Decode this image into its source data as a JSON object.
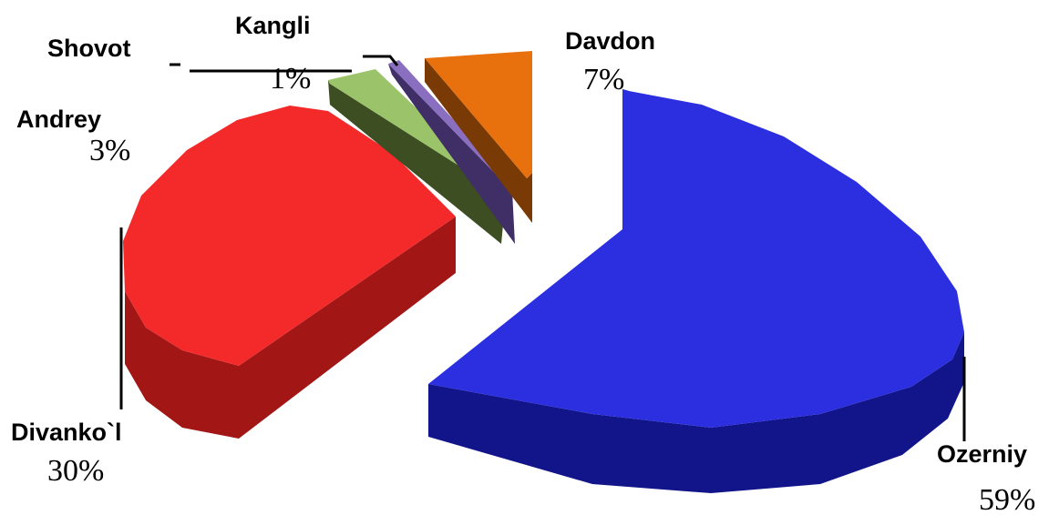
{
  "chart_data": {
    "type": "pie",
    "title": "",
    "slices": [
      {
        "name": "Ozerniy",
        "pct_label": "59%",
        "value": 59,
        "color": "#2b2fe0",
        "dark": "#12158a"
      },
      {
        "name": "Divanko`l",
        "pct_label": "30%",
        "value": 30,
        "color": "#f42a2a",
        "dark": "#a31616"
      },
      {
        "name": "Andrey",
        "pct_label": "3%",
        "value": 3,
        "color": "#9bc46a",
        "dark": "#3c4e22"
      },
      {
        "name": "Shovot",
        "pct_label": "",
        "value": 0,
        "color": "#9bc46a",
        "dark": "#3c4e22"
      },
      {
        "name": "Kangli",
        "pct_label": "1%",
        "value": 1,
        "color": "#8a6fc0",
        "dark": "#3f2f66"
      },
      {
        "name": "Davdon",
        "pct_label": "7%",
        "value": 7,
        "color": "#e8700d",
        "dark": "#7a3a05"
      }
    ]
  }
}
